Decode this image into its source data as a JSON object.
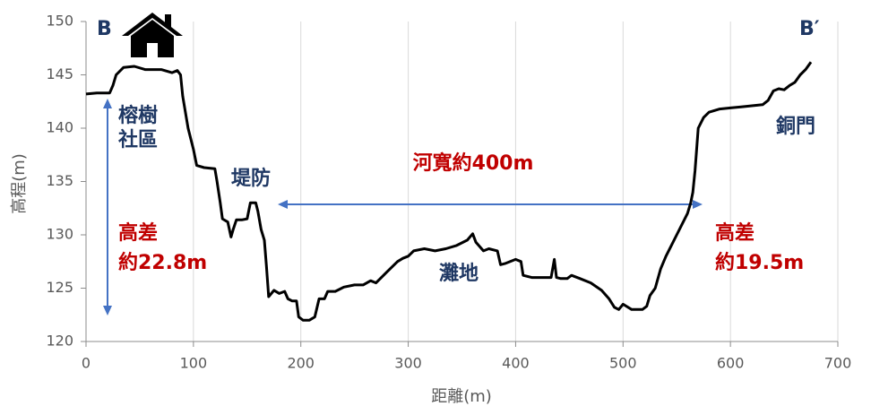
{
  "chart_data": {
    "type": "line",
    "x_label": "距離(m)",
    "y_label": "高程(m)",
    "xlim": [
      0,
      700
    ],
    "xticks": [
      0,
      100,
      200,
      300,
      400,
      500,
      600,
      700
    ],
    "ylim": [
      120,
      150
    ],
    "yticks": [
      120,
      125,
      130,
      135,
      140,
      145,
      150
    ],
    "grid": "x",
    "color": "#000000",
    "annotations": {
      "start": [
        "B"
      ],
      "end": [
        "B′"
      ],
      "community": [
        "榕樹",
        "社區"
      ],
      "levee": [
        "堤防"
      ],
      "width": [
        "河寬約400m"
      ],
      "floodplain": [
        "灘地"
      ],
      "left_diff": [
        "高差",
        "約22.8m"
      ],
      "right_diff": [
        "高差",
        "約19.5m"
      ],
      "tongmen": [
        "銅門"
      ]
    },
    "x": [
      0,
      10,
      22,
      25,
      28,
      35,
      45,
      55,
      70,
      80,
      85,
      88,
      90,
      95,
      100,
      103,
      110,
      120,
      122,
      125,
      127,
      132,
      135,
      137,
      140,
      145,
      150,
      153,
      158,
      160,
      163,
      166,
      168,
      170,
      175,
      180,
      185,
      188,
      192,
      196,
      198,
      202,
      208,
      213,
      217,
      222,
      225,
      232,
      240,
      250,
      258,
      265,
      270,
      280,
      285,
      290,
      295,
      300,
      305,
      315,
      325,
      335,
      345,
      355,
      360,
      363,
      370,
      375,
      383,
      386,
      390,
      400,
      405,
      407,
      415,
      425,
      433,
      436,
      438,
      442,
      448,
      452,
      460,
      470,
      480,
      487,
      492,
      496,
      500,
      508,
      518,
      522,
      525,
      530,
      535,
      540,
      545,
      550,
      555,
      560,
      563,
      565,
      567,
      570,
      575,
      580,
      590,
      600,
      610,
      620,
      630,
      635,
      640,
      645,
      650,
      655,
      660,
      665,
      670,
      675
    ],
    "values": [
      143.2,
      143.3,
      143.3,
      144,
      145,
      145.7,
      145.8,
      145.5,
      145.5,
      145.2,
      145.4,
      145,
      143,
      140,
      138,
      136.5,
      136.3,
      136.2,
      135,
      133,
      131.5,
      131.2,
      129.8,
      130.5,
      131.4,
      131.4,
      131.5,
      133,
      133,
      132.2,
      130.5,
      129.5,
      127,
      124.2,
      124.8,
      124.5,
      124.7,
      124,
      123.8,
      123.8,
      122.3,
      122,
      122,
      122.3,
      124,
      124,
      124.7,
      124.7,
      125.1,
      125.3,
      125.3,
      125.7,
      125.5,
      126.5,
      127,
      127.5,
      127.8,
      128,
      128.5,
      128.7,
      128.5,
      128.7,
      129,
      129.5,
      130.1,
      129.3,
      128.5,
      128.7,
      128.5,
      127.2,
      127.3,
      127.7,
      127.5,
      126.2,
      126,
      126,
      126,
      127.7,
      126,
      125.9,
      125.9,
      126.2,
      125.9,
      125.5,
      124.8,
      124,
      123.2,
      123,
      123.5,
      123,
      123,
      123.3,
      124.3,
      125,
      126.8,
      128,
      129,
      130,
      131,
      132,
      133,
      134,
      136,
      140,
      141,
      141.5,
      141.8,
      141.9,
      142,
      142.1,
      142.2,
      142.6,
      143.5,
      143.7,
      143.6,
      144,
      144.3,
      145,
      145.5,
      146.2
    ]
  }
}
